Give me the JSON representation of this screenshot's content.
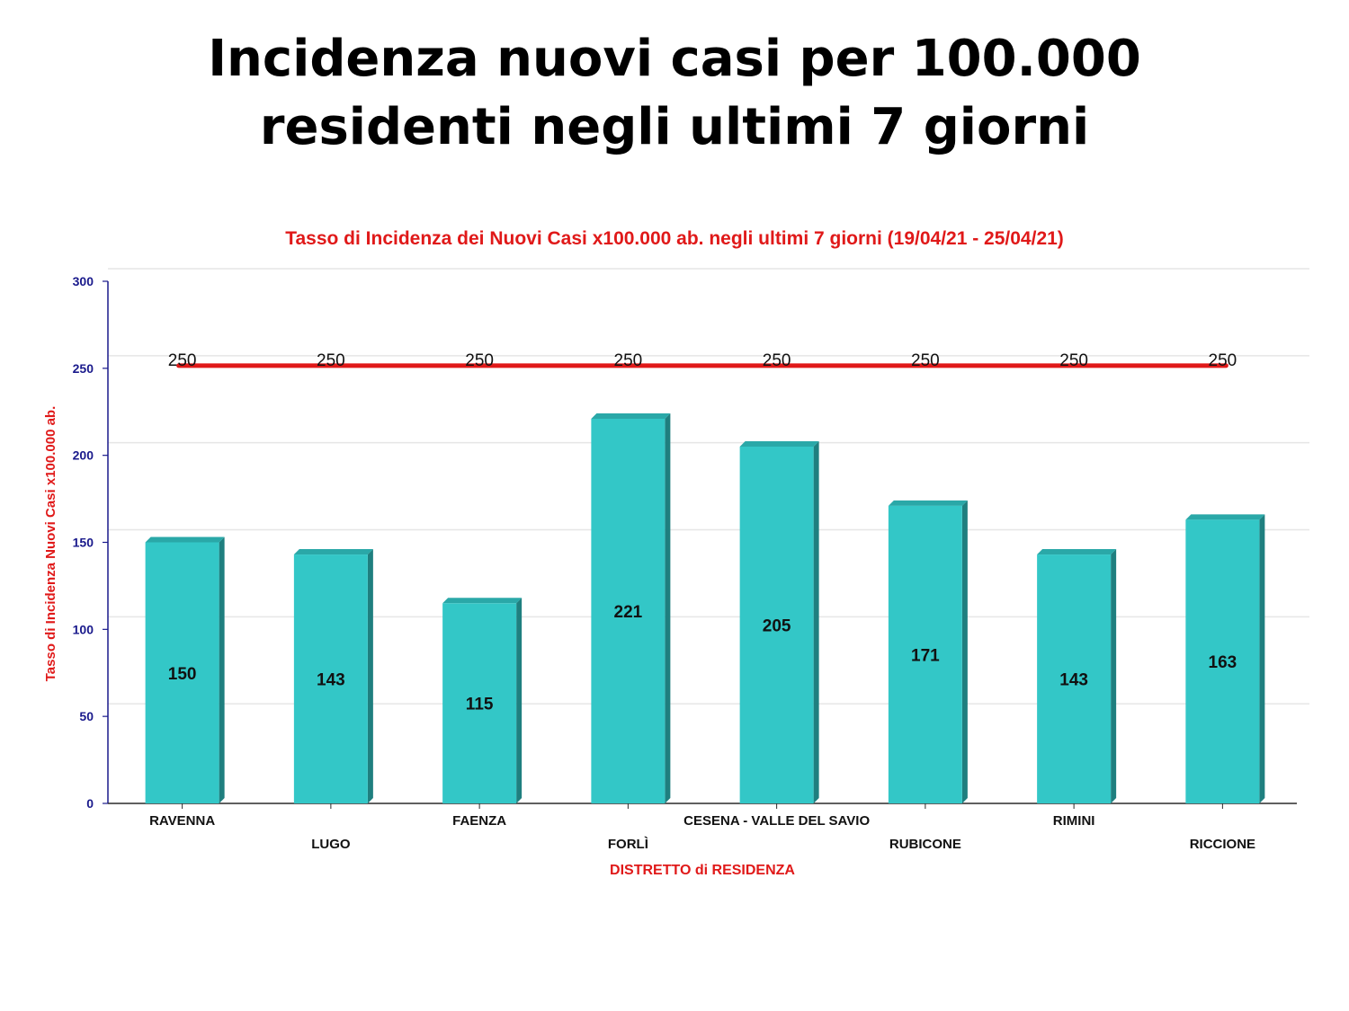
{
  "slide": {
    "title_line1": "Incidenza nuovi casi per 100.000",
    "title_line2": "residenti negli ultimi 7 giorni"
  },
  "colors": {
    "bar_front": "#33c7c7",
    "bar_top": "#2aa8a8",
    "bar_side": "#1f7f7f",
    "reference_line": "#e01919",
    "axis": "#1a1a8c"
  },
  "chart_data": {
    "type": "bar",
    "title": "Tasso di Incidenza dei Nuovi Casi x100.000 ab. negli ultimi 7 giorni (19/04/21 - 25/04/21)",
    "xlabel": "DISTRETTO di RESIDENZA",
    "ylabel": "Tasso di Incidenza Nuovi Casi x100.000 ab.",
    "ylim": [
      0,
      300
    ],
    "yticks": [
      0,
      50,
      100,
      150,
      200,
      250,
      300
    ],
    "grid": true,
    "categories": [
      "RAVENNA",
      "LUGO",
      "FAENZA",
      "FORLÌ",
      "CESENA - VALLE DEL SAVIO",
      "RUBICONE",
      "RIMINI",
      "RICCIONE"
    ],
    "values": [
      150,
      143,
      115,
      221,
      205,
      171,
      143,
      163
    ],
    "reference_line": {
      "values": [
        250,
        250,
        250,
        250,
        250,
        250,
        250,
        250
      ]
    }
  }
}
